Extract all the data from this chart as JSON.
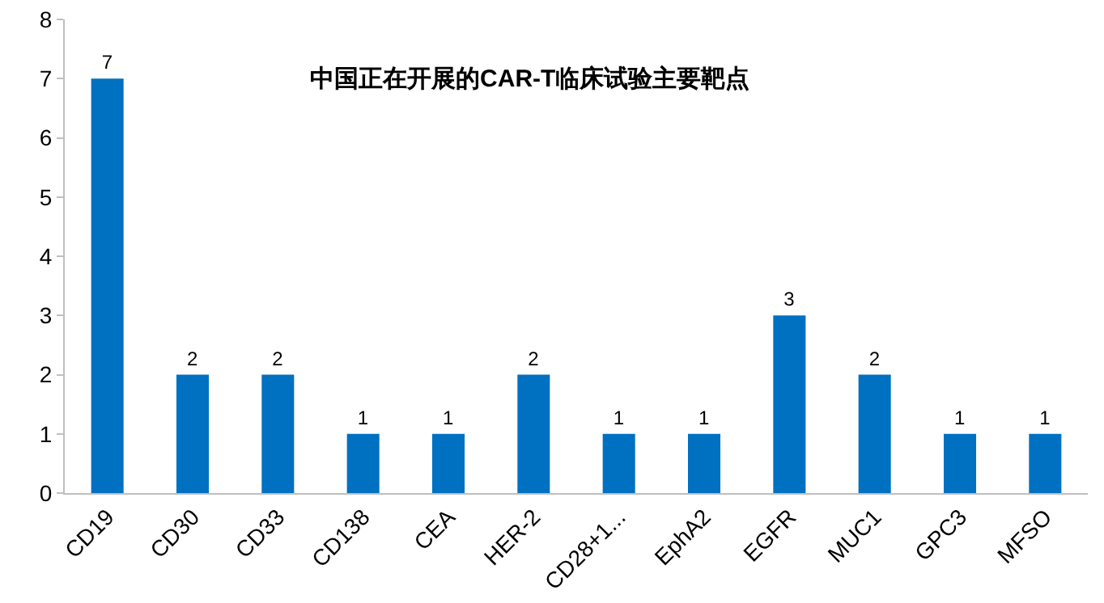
{
  "chart_data": {
    "type": "bar",
    "title": "中国正在开展的CAR-T临床试验主要靶点",
    "categories": [
      "CD19",
      "CD30",
      "CD33",
      "CD138",
      "CEA",
      "HER-2",
      "CD28+1...",
      "EphA2",
      "EGFR",
      "MUC1",
      "GPC3",
      "MFSO"
    ],
    "values": [
      7,
      2,
      2,
      1,
      1,
      2,
      1,
      1,
      3,
      2,
      1,
      1
    ],
    "color": "#0070c0",
    "ylim": [
      0,
      8
    ],
    "yticks": [
      0,
      1,
      2,
      3,
      4,
      5,
      6,
      7,
      8
    ],
    "grid": false,
    "data_labels": true
  }
}
